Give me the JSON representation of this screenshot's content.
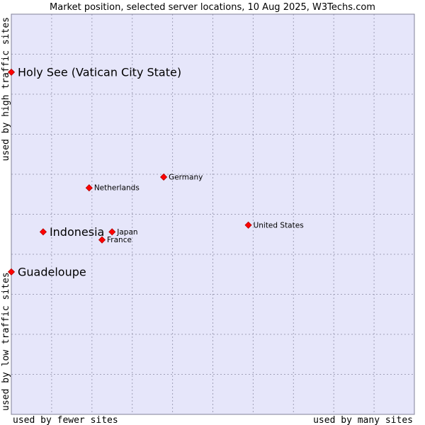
{
  "chart_data": {
    "type": "scatter",
    "title": "Market position, selected server locations, 10 Aug 2025, W3Techs.com",
    "xlabel_low": "used by fewer sites",
    "xlabel_high": "used by many sites",
    "ylabel_low": "used by low traffic sites",
    "ylabel_high": "used by high traffic sites",
    "xlim": [
      0,
      100
    ],
    "ylim": [
      0,
      100
    ],
    "grid": true,
    "colors": {
      "plot_background": "#e6e6fa",
      "grid": "#a0a0b8",
      "marker": "#ff0000",
      "marker_edge": "#b00000",
      "text": "#000000"
    },
    "points": [
      {
        "name": "Holy See (Vatican City State)",
        "x": 0.0,
        "y": 85.5,
        "size": "large"
      },
      {
        "name": "Germany",
        "x": 37.8,
        "y": 59.3,
        "size": "small"
      },
      {
        "name": "Netherlands",
        "x": 19.3,
        "y": 56.6,
        "size": "small"
      },
      {
        "name": "United States",
        "x": 58.8,
        "y": 47.3,
        "size": "small"
      },
      {
        "name": "Indonesia",
        "x": 7.9,
        "y": 45.6,
        "size": "large"
      },
      {
        "name": "Japan",
        "x": 25.0,
        "y": 45.6,
        "size": "small"
      },
      {
        "name": "France",
        "x": 22.5,
        "y": 43.6,
        "size": "small"
      },
      {
        "name": "Guadeloupe",
        "x": 0.0,
        "y": 35.6,
        "size": "large"
      }
    ]
  }
}
